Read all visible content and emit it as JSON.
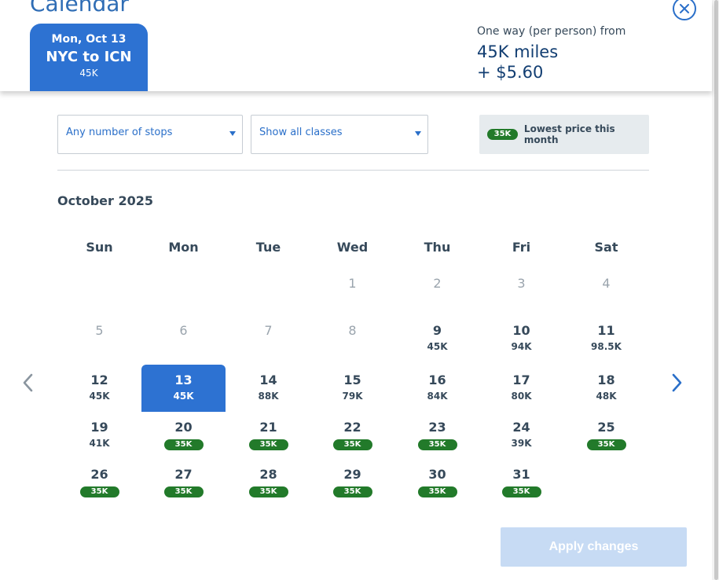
{
  "header": {
    "title": "Calendar",
    "tab": {
      "date": "Mon, Oct 13",
      "route": "NYC to ICN",
      "price": "45K"
    },
    "fare": {
      "label": "One way (per person) from",
      "miles": "45K miles",
      "taxes": "+ $5.60"
    }
  },
  "filters": {
    "stops": "Any number of stops",
    "classes": "Show all classes",
    "legend_badge": "35K",
    "legend_text": "Lowest price this month"
  },
  "calendar": {
    "month": "October 2025",
    "weekdays": [
      "Sun",
      "Mon",
      "Tue",
      "Wed",
      "Thu",
      "Fri",
      "Sat"
    ],
    "weeks": [
      [
        null,
        null,
        null,
        {
          "day": "1",
          "price": "",
          "status": "disabled"
        },
        {
          "day": "2",
          "price": "",
          "status": "disabled"
        },
        {
          "day": "3",
          "price": "",
          "status": "disabled"
        },
        {
          "day": "4",
          "price": "",
          "status": "disabled"
        }
      ],
      [
        {
          "day": "5",
          "price": "",
          "status": "disabled"
        },
        {
          "day": "6",
          "price": "",
          "status": "disabled"
        },
        {
          "day": "7",
          "price": "",
          "status": "disabled"
        },
        {
          "day": "8",
          "price": "",
          "status": "disabled"
        },
        {
          "day": "9",
          "price": "45K",
          "status": "normal"
        },
        {
          "day": "10",
          "price": "94K",
          "status": "normal"
        },
        {
          "day": "11",
          "price": "98.5K",
          "status": "normal"
        }
      ],
      [
        {
          "day": "12",
          "price": "45K",
          "status": "normal"
        },
        {
          "day": "13",
          "price": "45K",
          "status": "selected"
        },
        {
          "day": "14",
          "price": "88K",
          "status": "normal"
        },
        {
          "day": "15",
          "price": "79K",
          "status": "normal"
        },
        {
          "day": "16",
          "price": "84K",
          "status": "normal"
        },
        {
          "day": "17",
          "price": "80K",
          "status": "normal"
        },
        {
          "day": "18",
          "price": "48K",
          "status": "normal"
        }
      ],
      [
        {
          "day": "19",
          "price": "41K",
          "status": "normal"
        },
        {
          "day": "20",
          "price": "35K",
          "status": "lowest"
        },
        {
          "day": "21",
          "price": "35K",
          "status": "lowest"
        },
        {
          "day": "22",
          "price": "35K",
          "status": "lowest"
        },
        {
          "day": "23",
          "price": "35K",
          "status": "lowest"
        },
        {
          "day": "24",
          "price": "39K",
          "status": "normal"
        },
        {
          "day": "25",
          "price": "35K",
          "status": "lowest"
        }
      ],
      [
        {
          "day": "26",
          "price": "35K",
          "status": "lowest"
        },
        {
          "day": "27",
          "price": "35K",
          "status": "lowest"
        },
        {
          "day": "28",
          "price": "35K",
          "status": "lowest"
        },
        {
          "day": "29",
          "price": "35K",
          "status": "lowest"
        },
        {
          "day": "30",
          "price": "35K",
          "status": "lowest"
        },
        {
          "day": "31",
          "price": "35K",
          "status": "lowest"
        },
        null
      ]
    ]
  },
  "footer": {
    "apply_label": "Apply changes"
  },
  "colors": {
    "accent": "#2d72d2",
    "lowest_badge": "#227a2a",
    "apply_disabled": "#c7dbf4"
  },
  "icons": {
    "close": "close-circle-icon",
    "prev": "chevron-left-icon",
    "next": "chevron-right-icon",
    "dropdown": "caret-down-icon"
  }
}
